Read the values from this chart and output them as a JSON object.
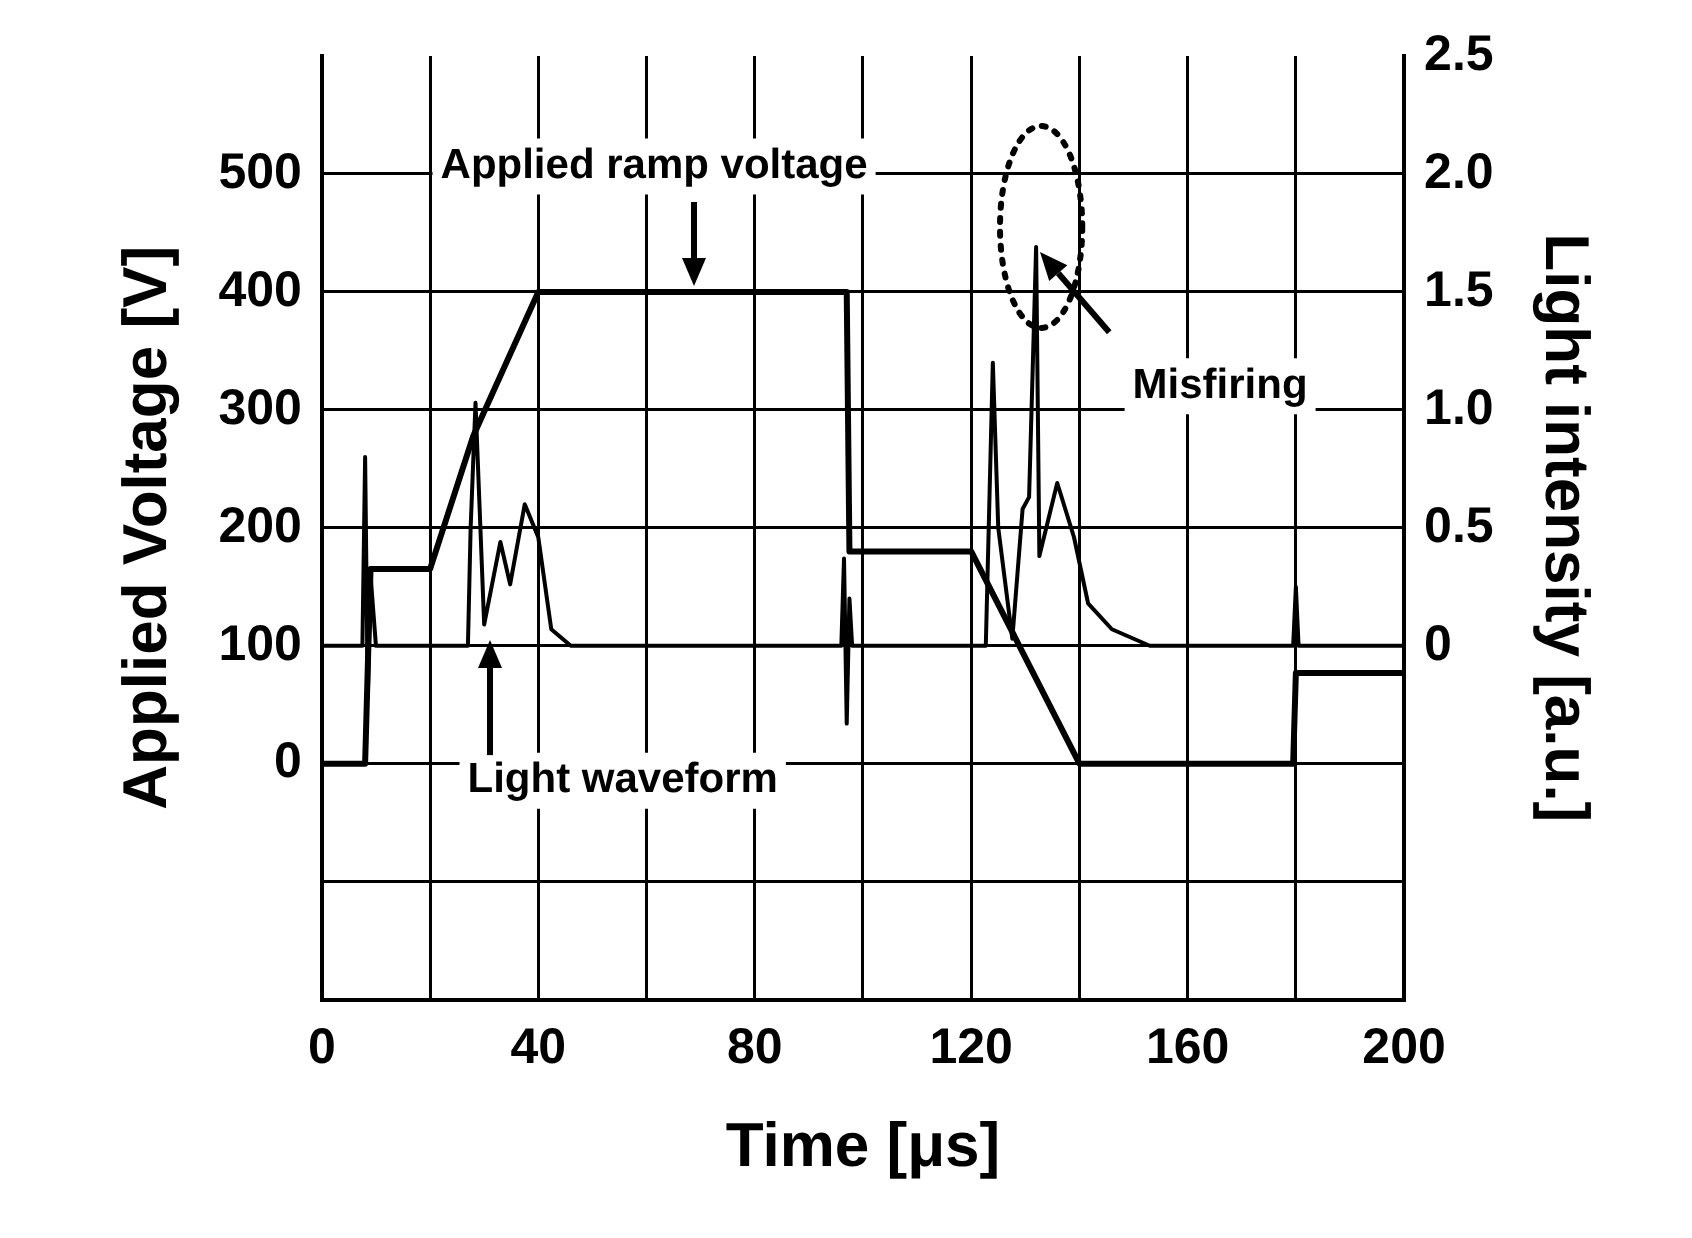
{
  "chart_data": {
    "type": "line",
    "xlabel": "Time [μs]",
    "ylabel": "Applied Voltage [V]",
    "y2label": "Light intensity [a.u.]",
    "xlim": [
      0,
      200
    ],
    "xticks": [
      0,
      {
        "value": 20,
        "label": null
      },
      40,
      {
        "value": 60,
        "label": null
      },
      80,
      {
        "value": 100,
        "label": null
      },
      120,
      {
        "value": 140,
        "label": null
      },
      160,
      {
        "value": 180,
        "label": null
      },
      200
    ],
    "ylim": [
      -200,
      600
    ],
    "yticks": [
      {
        "value": -100,
        "label": null
      },
      0,
      100,
      200,
      300,
      400,
      500
    ],
    "y2lim": [
      -1.5,
      2.5
    ],
    "y2ticks": [
      0,
      0.5,
      {
        "value": 1,
        "label": "1.0"
      },
      1.5,
      {
        "value": 2,
        "label": "2.0"
      },
      2.5
    ],
    "grid": true,
    "legend": false,
    "marker": "none",
    "line_style": "solid",
    "series": [
      {
        "color": "#000000",
        "x": [
          0,
          8,
          9,
          20,
          28,
          40,
          97,
          97.5,
          120,
          140,
          179.5,
          180,
          200
        ],
        "values": [
          0,
          0,
          165,
          165,
          278,
          400,
          400,
          180,
          180,
          0,
          0,
          77,
          77
        ]
      },
      {
        "color": "#000000",
        "axis": "y2",
        "x": [
          0,
          7.5,
          8,
          8.5,
          9,
          10,
          27,
          27.5,
          28.4,
          30,
          33,
          34.8,
          37.5,
          40,
          42.4,
          46,
          96,
          96.5,
          97,
          97.5,
          98,
          122.7,
          124,
          125,
          127.6,
          129.5,
          130.7,
          132,
          132.6,
          135.9,
          139,
          141.6,
          146,
          153,
          179.5,
          180,
          180.5,
          200
        ],
        "values": [
          0,
          0,
          0.8,
          -0.22,
          0.3,
          0,
          0,
          0.5,
          1.03,
          0.09,
          0.44,
          0.26,
          0.6,
          0.46,
          0.07,
          0,
          0,
          0.37,
          -0.33,
          0.2,
          0,
          0,
          1.2,
          0.5,
          0.03,
          0.58,
          0.63,
          1.69,
          0.38,
          0.69,
          0.46,
          0.18,
          0.07,
          0,
          0,
          0.25,
          0,
          0
        ]
      }
    ],
    "annotations": [
      "Applied ramp voltage",
      "Light waveform",
      "Misfiring"
    ]
  }
}
